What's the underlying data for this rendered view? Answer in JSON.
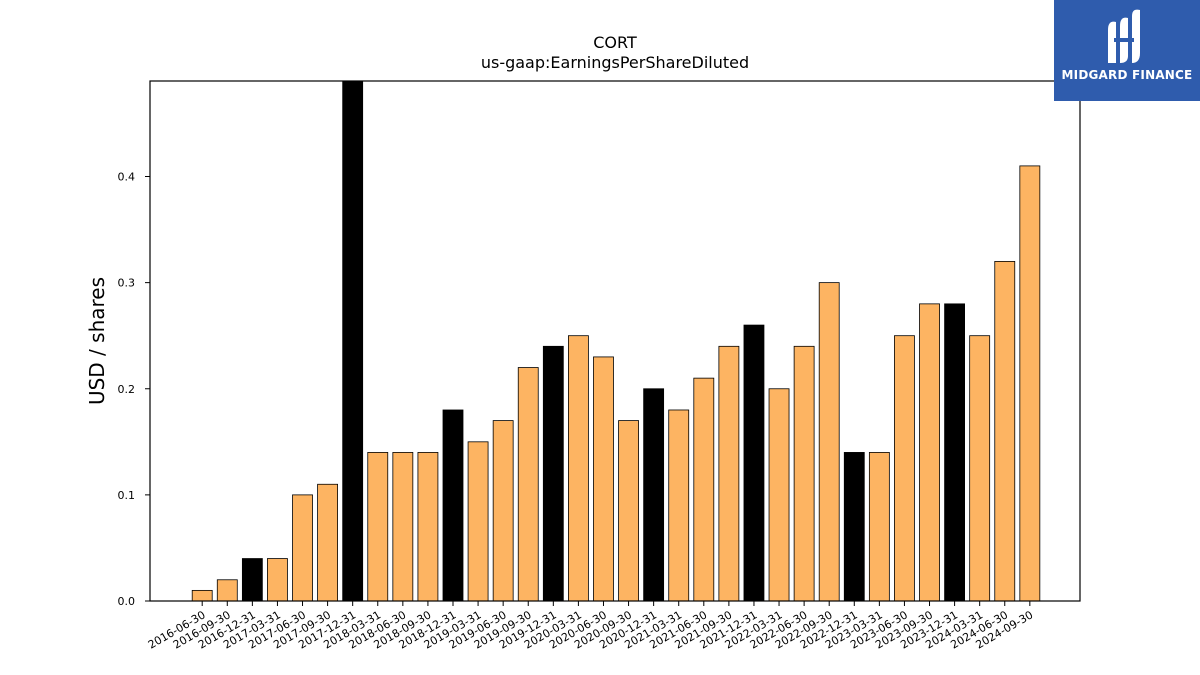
{
  "chart_data": {
    "type": "bar",
    "title": "CORT",
    "subtitle": "us-gaap:EarningsPerShareDiluted",
    "xlabel": "",
    "ylabel": "USD / shares",
    "ylim": [
      0,
      0.49
    ],
    "yticks": [
      0.0,
      0.1,
      0.2,
      0.3,
      0.4
    ],
    "grid": false,
    "categories": [
      "2016-06-30",
      "2016-09-30",
      "2016-12-31",
      "2017-03-31",
      "2017-06-30",
      "2017-09-30",
      "2017-12-31",
      "2018-03-31",
      "2018-06-30",
      "2018-09-30",
      "2018-12-31",
      "2019-03-31",
      "2019-06-30",
      "2019-09-30",
      "2019-12-31",
      "2020-03-31",
      "2020-06-30",
      "2020-09-30",
      "2020-12-31",
      "2021-03-31",
      "2021-06-30",
      "2021-09-30",
      "2021-12-31",
      "2022-03-31",
      "2022-06-30",
      "2022-09-30",
      "2022-12-31",
      "2023-03-31",
      "2023-06-30",
      "2023-09-30",
      "2023-12-31",
      "2024-03-31",
      "2024-06-30",
      "2024-09-30"
    ],
    "values": [
      0.01,
      0.02,
      0.04,
      0.04,
      0.1,
      0.11,
      0.49,
      0.14,
      0.14,
      0.14,
      0.18,
      0.15,
      0.17,
      0.22,
      0.24,
      0.25,
      0.23,
      0.17,
      0.2,
      0.18,
      0.21,
      0.24,
      0.26,
      0.2,
      0.24,
      0.3,
      0.14,
      0.14,
      0.25,
      0.28,
      0.28,
      0.25,
      0.32,
      0.41
    ],
    "year_end": [
      false,
      false,
      true,
      false,
      false,
      false,
      true,
      false,
      false,
      false,
      true,
      false,
      false,
      false,
      true,
      false,
      false,
      false,
      true,
      false,
      false,
      false,
      true,
      false,
      false,
      false,
      true,
      false,
      false,
      false,
      true,
      false,
      false,
      false
    ],
    "colors": {
      "quarter": "#fdb462",
      "year_end": "#000000",
      "edge": "#000000"
    }
  },
  "logo": {
    "text": "MIDGARD FINANCE",
    "bg": "#2f5cad"
  }
}
